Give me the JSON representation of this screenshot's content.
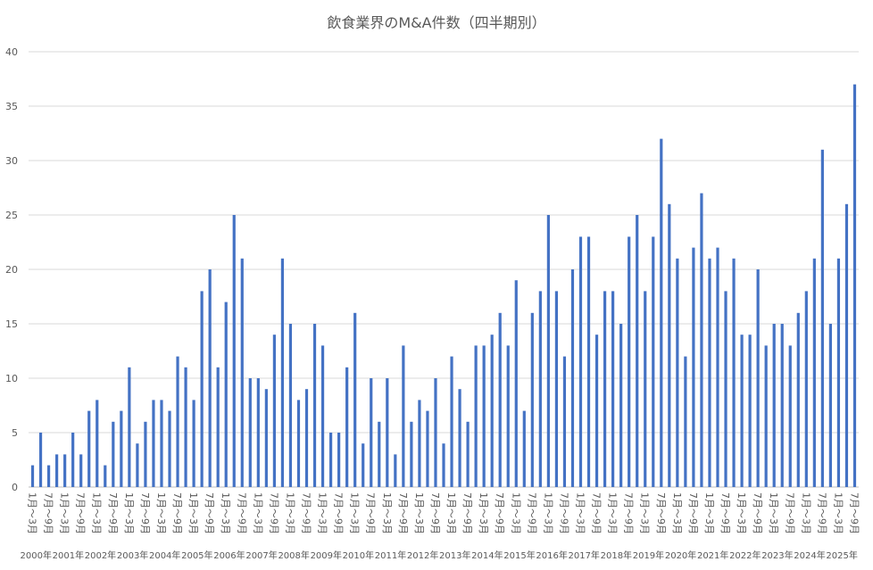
{
  "chart_data": {
    "type": "bar",
    "title": "飲食業界のM&A件数（四半期別）",
    "categories": [
      "1月～3月",
      null,
      "7月～9月",
      null,
      "1月～3月",
      null,
      "7月～9月",
      null,
      "1月～3月",
      null,
      "7月～9月",
      null,
      "1月～3月",
      null,
      "7月～9月",
      null,
      "1月～3月",
      null,
      "7月～9月",
      null,
      "1月～3月",
      null,
      "7月～9月",
      null,
      "1月～3月",
      null,
      "7月～9月",
      null,
      "1月～3月",
      null,
      "7月～9月",
      null,
      "1月～3月",
      null,
      "7月～9月",
      null,
      "1月～3月",
      null,
      "7月～9月",
      null,
      "1月～3月",
      null,
      "7月～9月",
      null,
      "1月～3月",
      null,
      "7月～9月",
      null,
      "1月～3月",
      null,
      "7月～9月",
      null,
      "1月～3月",
      null,
      "7月～9月",
      null,
      "1月～3月",
      null,
      "7月～9月",
      null,
      "1月～3月",
      null,
      "7月～9月",
      null,
      "1月～3月",
      null,
      "7月～9月",
      null,
      "1月～3月",
      null,
      "7月～9月",
      null,
      "1月～3月",
      null,
      "7月～9月",
      null,
      "1月～3月",
      null,
      "7月～9月",
      null,
      "1月～3月",
      null,
      "7月～9月",
      null,
      "1月～3月",
      null,
      "7月～9月",
      null,
      "1月～3月",
      null,
      "7月～9月",
      null,
      "1月～3月",
      null,
      "7月～9月",
      null,
      "1月～3月",
      null,
      "7月～9月",
      null,
      "1月～3月",
      null,
      "7月～9月"
    ],
    "year_labels": [
      "2000年",
      "2001年",
      "2002年",
      "2003年",
      "2004年",
      "2005年",
      "2006年",
      "2007年",
      "2008年",
      "2009年",
      "2010年",
      "2011年",
      "2012年",
      "2013年",
      "2014年",
      "2015年",
      "2016年",
      "2017年",
      "2018年",
      "2019年",
      "2020年",
      "2021年",
      "2022年",
      "2023年",
      "2024年",
      "2025年"
    ],
    "values": [
      2,
      5,
      2,
      3,
      3,
      5,
      3,
      7,
      8,
      2,
      6,
      7,
      11,
      4,
      6,
      8,
      8,
      7,
      12,
      11,
      8,
      18,
      20,
      11,
      17,
      25,
      21,
      10,
      10,
      9,
      14,
      21,
      15,
      8,
      9,
      15,
      13,
      5,
      5,
      11,
      16,
      4,
      10,
      6,
      10,
      3,
      13,
      6,
      8,
      7,
      10,
      4,
      12,
      9,
      6,
      13,
      13,
      14,
      16,
      13,
      19,
      7,
      16,
      18,
      25,
      18,
      12,
      20,
      23,
      23,
      14,
      18,
      18,
      15,
      23,
      25,
      18,
      23,
      32,
      26,
      21,
      12,
      22,
      27,
      21,
      22,
      18,
      21,
      14,
      14,
      20,
      13,
      15,
      15,
      13,
      16,
      18,
      21,
      31,
      15,
      21,
      26,
      37
    ],
    "color": "#4472c4",
    "ylim": [
      0,
      40
    ],
    "yticks": [
      0,
      5,
      10,
      15,
      20,
      25,
      30,
      35,
      40
    ],
    "grid": true
  }
}
